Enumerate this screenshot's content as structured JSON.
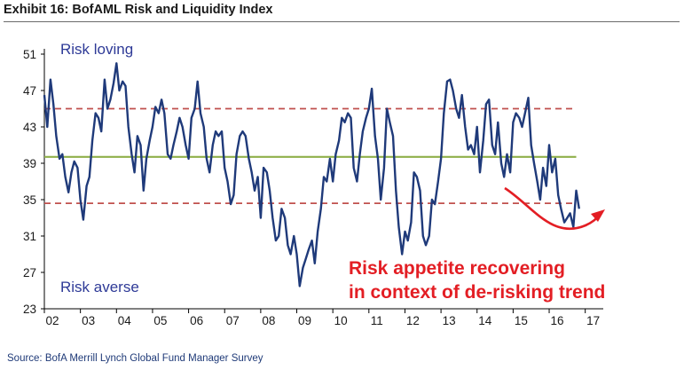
{
  "header": {
    "title": "Exhibit 16: BofAML Risk and Liquidity Index"
  },
  "footer": {
    "source": "Source: BofA Merrill Lynch Global Fund Manager Survey"
  },
  "colors": {
    "series": "#1f3a7a",
    "mean_line": "#8fb04a",
    "band_lines": "#c0504d",
    "annotation": "#e31e24",
    "text_blue": "#2e3a97"
  },
  "chart_data": {
    "type": "line",
    "title": "",
    "xlabel": "",
    "ylabel": "",
    "x_tick_labels": [
      "02",
      "03",
      "04",
      "05",
      "06",
      "07",
      "08",
      "09",
      "10",
      "11",
      "12",
      "13",
      "14",
      "15",
      "16",
      "17"
    ],
    "y_ticks": [
      23,
      27,
      31,
      35,
      39,
      43,
      47,
      51
    ],
    "xlim": [
      2002,
      2017.5
    ],
    "ylim": [
      23,
      51
    ],
    "grid": false,
    "reference_lines": [
      {
        "style": "solid",
        "color": "green",
        "value": 39.7
      },
      {
        "style": "dashed",
        "color": "red",
        "value": 45.0
      },
      {
        "style": "dashed",
        "color": "red",
        "value": 34.6
      }
    ],
    "annotations": {
      "risk_loving": "Risk loving",
      "risk_averse": "Risk averse",
      "recovery_line1": "Risk appetite recovering",
      "recovery_line2": "in context of de-risking trend"
    },
    "series": [
      {
        "x": [
          2002.0,
          2002.08,
          2002.17,
          2002.25,
          2002.33,
          2002.42,
          2002.5,
          2002.58,
          2002.67,
          2002.75,
          2002.83,
          2002.92,
          2003.0,
          2003.08,
          2003.17,
          2003.25,
          2003.33,
          2003.42,
          2003.5,
          2003.58,
          2003.67,
          2003.75,
          2003.83,
          2003.92,
          2004.0,
          2004.08,
          2004.17,
          2004.25,
          2004.33,
          2004.42,
          2004.5,
          2004.58,
          2004.67,
          2004.75,
          2004.83,
          2004.92,
          2005.0,
          2005.08,
          2005.17,
          2005.25,
          2005.33,
          2005.42,
          2005.5,
          2005.58,
          2005.67,
          2005.75,
          2005.83,
          2005.92,
          2006.0,
          2006.08,
          2006.17,
          2006.25,
          2006.33,
          2006.42,
          2006.5,
          2006.58,
          2006.67,
          2006.75,
          2006.83,
          2006.92,
          2007.0,
          2007.08,
          2007.17,
          2007.25,
          2007.33,
          2007.42,
          2007.5,
          2007.58,
          2007.67,
          2007.75,
          2007.83,
          2007.92,
          2008.0,
          2008.08,
          2008.17,
          2008.25,
          2008.33,
          2008.42,
          2008.5,
          2008.58,
          2008.67,
          2008.75,
          2008.83,
          2008.92,
          2009.0,
          2009.08,
          2009.17,
          2009.25,
          2009.33,
          2009.42,
          2009.5,
          2009.58,
          2009.67,
          2009.75,
          2009.83,
          2009.92,
          2010.0,
          2010.08,
          2010.17,
          2010.25,
          2010.33,
          2010.42,
          2010.5,
          2010.58,
          2010.67,
          2010.75,
          2010.83,
          2010.92,
          2011.0,
          2011.08,
          2011.17,
          2011.25,
          2011.33,
          2011.42,
          2011.5,
          2011.58,
          2011.67,
          2011.75,
          2011.83,
          2011.92,
          2012.0,
          2012.08,
          2012.17,
          2012.25,
          2012.33,
          2012.42,
          2012.5,
          2012.58,
          2012.67,
          2012.75,
          2012.83,
          2012.92,
          2013.0,
          2013.08,
          2013.17,
          2013.25,
          2013.33,
          2013.42,
          2013.5,
          2013.58,
          2013.67,
          2013.75,
          2013.83,
          2013.92,
          2014.0,
          2014.08,
          2014.17,
          2014.25,
          2014.33,
          2014.42,
          2014.5,
          2014.58,
          2014.67,
          2014.75,
          2014.83,
          2014.92,
          2015.0,
          2015.08,
          2015.17,
          2015.25,
          2015.33,
          2015.42,
          2015.5,
          2015.58,
          2015.67,
          2015.75,
          2015.83,
          2015.92,
          2016.0,
          2016.08,
          2016.17,
          2016.25,
          2016.33,
          2016.42,
          2016.5,
          2016.58,
          2016.67,
          2016.75,
          2016.83
        ],
        "values": [
          46.5,
          43.0,
          48.2,
          45.5,
          42.0,
          39.5,
          40.0,
          37.5,
          35.8,
          38.0,
          39.2,
          38.5,
          35.0,
          32.8,
          36.5,
          37.5,
          41.5,
          44.5,
          44.0,
          42.5,
          48.2,
          45.0,
          46.0,
          47.8,
          50.0,
          47.0,
          48.0,
          47.5,
          43.0,
          40.0,
          38.0,
          42.0,
          41.0,
          36.0,
          39.5,
          41.5,
          43.0,
          45.2,
          44.5,
          46.0,
          44.5,
          40.0,
          39.5,
          41.0,
          42.5,
          44.0,
          43.0,
          41.0,
          39.5,
          44.0,
          45.0,
          48.0,
          44.5,
          43.0,
          39.5,
          38.0,
          41.0,
          42.5,
          42.0,
          42.5,
          38.5,
          37.0,
          34.5,
          35.5,
          40.0,
          42.0,
          42.5,
          42.0,
          39.5,
          38.0,
          36.0,
          37.5,
          33.0,
          38.5,
          38.0,
          36.0,
          33.0,
          30.5,
          31.0,
          34.0,
          33.0,
          30.0,
          29.0,
          31.0,
          29.0,
          25.5,
          27.5,
          28.5,
          29.5,
          30.5,
          28.0,
          31.5,
          34.0,
          37.5,
          37.0,
          39.5,
          37.0,
          40.0,
          41.5,
          44.0,
          43.5,
          44.5,
          44.0,
          38.5,
          37.0,
          40.0,
          42.5,
          44.0,
          45.0,
          47.2,
          42.0,
          39.5,
          35.0,
          38.5,
          45.0,
          43.5,
          42.0,
          36.0,
          32.0,
          29.0,
          31.5,
          30.5,
          32.5,
          38.0,
          37.5,
          36.0,
          31.0,
          30.0,
          31.0,
          35.0,
          34.5,
          37.0,
          39.5,
          44.5,
          48.0,
          48.2,
          47.0,
          45.0,
          44.0,
          46.5,
          43.0,
          40.5,
          41.0,
          40.0,
          43.0,
          38.0,
          41.5,
          45.5,
          46.0,
          41.0,
          40.0,
          43.5,
          39.0,
          37.5,
          40.0,
          38.0,
          43.5,
          44.5,
          44.0,
          43.0,
          44.5,
          46.2,
          41.0,
          39.0,
          37.0,
          35.0,
          38.5,
          36.5,
          41.0,
          38.0,
          39.5,
          35.5,
          34.0,
          32.5,
          33.0,
          33.5,
          32.0,
          36.0,
          34.0
        ]
      }
    ]
  }
}
